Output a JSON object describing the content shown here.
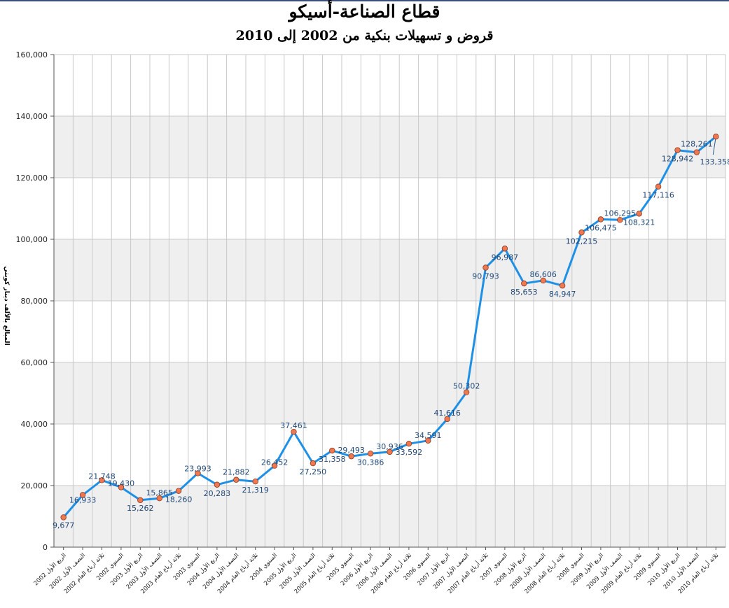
{
  "chart_data": {
    "type": "line",
    "title": "قطاع الصناعة-أسيكو",
    "subtitle": "قروض و تسهيلات بنكية من 2002 إلى 2010",
    "xlabel": "",
    "ylabel": "المبالغ بالألف دينار كويتي",
    "ylim": [
      0,
      160000
    ],
    "yticks": [
      "0",
      "20,000",
      "40,000",
      "60,000",
      "80,000",
      "100,000",
      "120,000",
      "140,000",
      "160,000"
    ],
    "grid": true,
    "legend": "none",
    "line_color": "#1e90e6",
    "marker_color": "#f07850",
    "band_color": "#efefef",
    "categories": [
      "الربع الأول 2002",
      "النصف الأول 2002",
      "ثلاثة أرباع العام 2002",
      "السنوي 2002",
      "الربع الأول 2003",
      "النصف الأول 2003",
      "ثلاثة أرباع العام 2003",
      "السنوي 2003",
      "الربع الأول 2004",
      "النصف الأول 2004",
      "ثلاثة أرباع العام 2004",
      "السنوي 2004",
      "الربع الأول 2005",
      "النصف الأول 2005",
      "ثلاثة أرباع العام 2005",
      "السنوي 2005",
      "الربع الأول 2006",
      "النصف الأول 2006",
      "ثلاثة أرباع العام 2006",
      "السنوي 2006",
      "الربع الأول 2007",
      "النصف الأول 2007",
      "ثلاثة أرباع العام 2007",
      "السنوي 2007",
      "الربع الأول 2008",
      "النصف الأول 2008",
      "ثلاثة أرباع العام 2008",
      "السنوي 2008",
      "الربع الأول 2009",
      "النصف الأول 2009",
      "ثلاثة أرباع العام 2009",
      "السنوي 2009",
      "الربع الأول 2010",
      "النصف الأول 2010",
      "ثلاثة أرباع العام 2010"
    ],
    "values": [
      9677,
      16933,
      21748,
      19430,
      15262,
      15865,
      18260,
      23993,
      20283,
      21882,
      21319,
      26452,
      37461,
      27250,
      31358,
      29493,
      30386,
      30936,
      33592,
      34591,
      41616,
      50302,
      90793,
      96987,
      85653,
      86606,
      84947,
      102215,
      106475,
      106295,
      108321,
      117116,
      128942,
      128261,
      133358
    ],
    "value_labels": [
      "9,677",
      "16,933",
      "21,748",
      "19,430",
      "15,262",
      "15,865",
      "18,260",
      "23,993",
      "20,283",
      "21,882",
      "21,319",
      "26,452",
      "37,461",
      "27,250",
      "31,358",
      "29,493",
      "30,386",
      "30,936",
      "33,592",
      "34,591",
      "41,616",
      "50,302",
      "90,793",
      "96,987",
      "85,653",
      "86,606",
      "84,947",
      "102,215",
      "106,475",
      "106,295",
      "108,321",
      "117,116",
      "128,942",
      "128,261",
      "133,358"
    ]
  }
}
